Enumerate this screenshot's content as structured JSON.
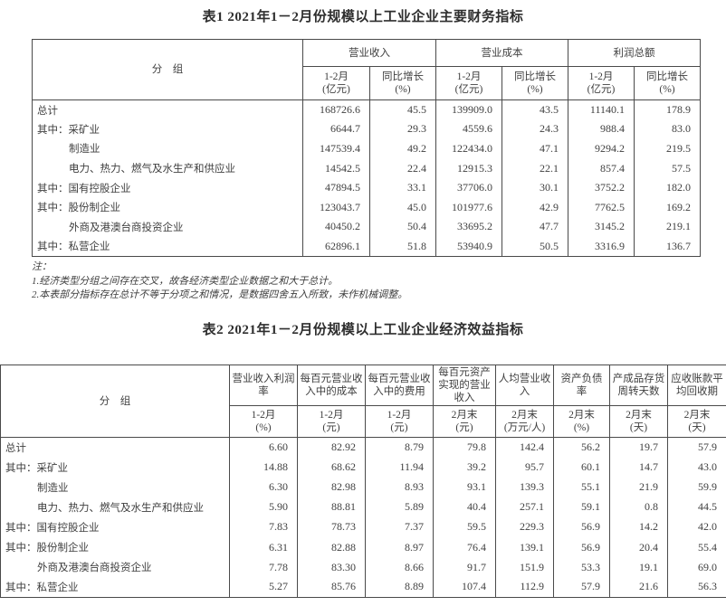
{
  "page": {
    "background": "#ffffff",
    "text_color": "#3f3f3f",
    "border_color": "#4a4a4a"
  },
  "table1": {
    "title": "表1 2021年1－2月份规模以上工业企业主要财务指标",
    "group_header": "分　组",
    "col_groups": [
      "营业收入",
      "营业成本",
      "利润总额"
    ],
    "sub_headers": [
      "1-2月\n(亿元)",
      "同比增长\n(%)",
      "1-2月\n(亿元)",
      "同比增长\n(%)",
      "1-2月\n(亿元)",
      "同比增长\n(%)"
    ],
    "rows": [
      {
        "label": "总计",
        "indent": false,
        "values": [
          "168726.6",
          "45.5",
          "139909.0",
          "43.5",
          "11140.1",
          "178.9"
        ]
      },
      {
        "label": "其中：采矿业",
        "indent": false,
        "values": [
          "6644.7",
          "29.3",
          "4559.6",
          "24.3",
          "988.4",
          "83.0"
        ]
      },
      {
        "label": "制造业",
        "indent": true,
        "values": [
          "147539.4",
          "49.2",
          "122434.0",
          "47.1",
          "9294.2",
          "219.5"
        ]
      },
      {
        "label": "电力、热力、燃气及水生产和供应业",
        "indent": true,
        "values": [
          "14542.5",
          "22.4",
          "12915.3",
          "22.1",
          "857.4",
          "57.5"
        ]
      },
      {
        "label": "其中：国有控股企业",
        "indent": false,
        "values": [
          "47894.5",
          "33.1",
          "37706.0",
          "30.1",
          "3752.2",
          "182.0"
        ]
      },
      {
        "label": "其中：股份制企业",
        "indent": false,
        "values": [
          "123043.7",
          "45.0",
          "101977.6",
          "42.9",
          "7762.5",
          "169.2"
        ]
      },
      {
        "label": "外商及港澳台商投资企业",
        "indent": true,
        "values": [
          "40450.2",
          "50.4",
          "33695.2",
          "47.7",
          "3145.2",
          "219.1"
        ]
      },
      {
        "label": "其中：私营企业",
        "indent": false,
        "values": [
          "62896.1",
          "51.8",
          "53940.9",
          "50.5",
          "3316.9",
          "136.7"
        ]
      }
    ]
  },
  "notes": {
    "label": "注：",
    "items": [
      "1.经济类型分组之间存在交叉，故各经济类型企业数据之和大于总计。",
      "2.本表部分指标存在总计不等于分项之和情况，是数据四舍五入所致，未作机械调整。"
    ]
  },
  "table2": {
    "title": "表2 2021年1－2月份规模以上工业企业经济效益指标",
    "group_header": "分　组",
    "columns": [
      {
        "name": "营业收入利润率",
        "sub": "1-2月\n(%)"
      },
      {
        "name": "每百元营业收入中的成本",
        "sub": "1-2月\n(元)"
      },
      {
        "name": "每百元营业收入中的费用",
        "sub": "1-2月\n(元)"
      },
      {
        "name": "每百元资产实现的营业收入",
        "sub": "2月末\n(元)"
      },
      {
        "name": "人均营业收入",
        "sub": "2月末\n(万元/人)"
      },
      {
        "name": "资产负债率",
        "sub": "2月末\n(%)"
      },
      {
        "name": "产成品存货周转天数",
        "sub": "2月末\n(天)"
      },
      {
        "name": "应收账款平均回收期",
        "sub": "2月末\n(天)"
      }
    ],
    "rows": [
      {
        "label": "总计",
        "indent": false,
        "values": [
          "6.60",
          "82.92",
          "8.79",
          "79.8",
          "142.4",
          "56.2",
          "19.7",
          "57.9"
        ]
      },
      {
        "label": "其中：采矿业",
        "indent": false,
        "values": [
          "14.88",
          "68.62",
          "11.94",
          "39.2",
          "95.7",
          "60.1",
          "14.7",
          "43.0"
        ]
      },
      {
        "label": "制造业",
        "indent": true,
        "values": [
          "6.30",
          "82.98",
          "8.93",
          "93.1",
          "139.3",
          "55.1",
          "21.9",
          "59.9"
        ]
      },
      {
        "label": "电力、热力、燃气及水生产和供应业",
        "indent": true,
        "values": [
          "5.90",
          "88.81",
          "5.89",
          "40.4",
          "257.1",
          "59.1",
          "0.8",
          "44.5"
        ]
      },
      {
        "label": "其中：国有控股企业",
        "indent": false,
        "values": [
          "7.83",
          "78.73",
          "7.37",
          "59.5",
          "229.3",
          "56.9",
          "14.2",
          "42.0"
        ]
      },
      {
        "label": "其中：股份制企业",
        "indent": false,
        "values": [
          "6.31",
          "82.88",
          "8.97",
          "76.4",
          "139.1",
          "56.9",
          "20.4",
          "55.4"
        ]
      },
      {
        "label": "外商及港澳台商投资企业",
        "indent": true,
        "values": [
          "7.78",
          "83.30",
          "8.66",
          "91.7",
          "151.9",
          "53.3",
          "19.1",
          "69.0"
        ]
      },
      {
        "label": "其中：私营企业",
        "indent": false,
        "values": [
          "5.27",
          "85.76",
          "8.89",
          "107.4",
          "112.9",
          "57.9",
          "21.6",
          "56.3"
        ]
      }
    ]
  }
}
